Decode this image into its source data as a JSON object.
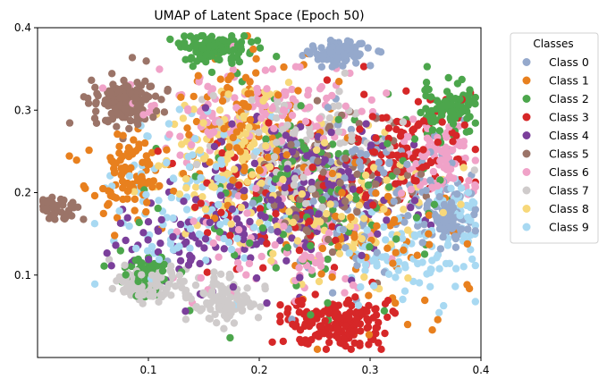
{
  "chart_data": {
    "type": "scatter",
    "title": "UMAP of Latent Space (Epoch 50)",
    "xlabel": "",
    "ylabel": "",
    "xlim": [
      0.0,
      0.4
    ],
    "ylim": [
      0.0,
      0.4
    ],
    "x_ticks": [
      0.1,
      0.2,
      0.3,
      0.4
    ],
    "y_ticks": [
      0.1,
      0.2,
      0.3,
      0.4
    ],
    "x_tick_labels": [
      "0.1",
      "0.2",
      "0.3",
      "0.4"
    ],
    "y_tick_labels": [
      "0.1",
      "0.2",
      "0.3",
      "0.4"
    ],
    "grid": false,
    "legend": {
      "title": "Classes",
      "placement": "outside-right-top"
    },
    "series": [
      {
        "name": "Class 0",
        "color": "#95a9cc",
        "clusters": [
          [
            0.27,
            0.37,
            0.025,
            0.012,
            90
          ],
          [
            0.37,
            0.17,
            0.015,
            0.025,
            90
          ],
          [
            0.28,
            0.2,
            0.08,
            0.09,
            140
          ]
        ]
      },
      {
        "name": "Class 1",
        "color": "#e8801e",
        "clusters": [
          [
            0.08,
            0.22,
            0.03,
            0.04,
            90
          ],
          [
            0.18,
            0.28,
            0.06,
            0.08,
            130
          ],
          [
            0.3,
            0.15,
            0.07,
            0.07,
            80
          ]
        ]
      },
      {
        "name": "Class 2",
        "color": "#4ca64c",
        "clusters": [
          [
            0.16,
            0.375,
            0.03,
            0.015,
            110
          ],
          [
            0.37,
            0.3,
            0.02,
            0.025,
            100
          ],
          [
            0.1,
            0.1,
            0.02,
            0.02,
            60
          ],
          [
            0.25,
            0.2,
            0.1,
            0.1,
            140
          ]
        ]
      },
      {
        "name": "Class 3",
        "color": "#d62728",
        "clusters": [
          [
            0.27,
            0.04,
            0.04,
            0.025,
            170
          ],
          [
            0.33,
            0.25,
            0.04,
            0.06,
            120
          ],
          [
            0.22,
            0.2,
            0.07,
            0.08,
            90
          ]
        ]
      },
      {
        "name": "Class 4",
        "color": "#7b3f9b",
        "clusters": [
          [
            0.24,
            0.2,
            0.07,
            0.08,
            200
          ],
          [
            0.13,
            0.14,
            0.05,
            0.05,
            80
          ]
        ]
      },
      {
        "name": "Class 5",
        "color": "#9b7468",
        "clusters": [
          [
            0.08,
            0.31,
            0.025,
            0.025,
            160
          ],
          [
            0.02,
            0.18,
            0.015,
            0.01,
            40
          ],
          [
            0.26,
            0.22,
            0.07,
            0.07,
            110
          ]
        ]
      },
      {
        "name": "Class 6",
        "color": "#f0a2c8",
        "clusters": [
          [
            0.2,
            0.3,
            0.08,
            0.05,
            150
          ],
          [
            0.36,
            0.24,
            0.03,
            0.04,
            90
          ],
          [
            0.22,
            0.13,
            0.08,
            0.06,
            80
          ]
        ]
      },
      {
        "name": "Class 7",
        "color": "#cfcbcb",
        "clusters": [
          [
            0.1,
            0.09,
            0.025,
            0.015,
            130
          ],
          [
            0.17,
            0.07,
            0.025,
            0.02,
            110
          ],
          [
            0.24,
            0.26,
            0.06,
            0.06,
            110
          ]
        ]
      },
      {
        "name": "Class 8",
        "color": "#f7d87a",
        "clusters": [
          [
            0.17,
            0.24,
            0.05,
            0.07,
            150
          ],
          [
            0.28,
            0.18,
            0.08,
            0.07,
            110
          ]
        ]
      },
      {
        "name": "Class 9",
        "color": "#a8d9f2",
        "clusters": [
          [
            0.15,
            0.2,
            0.07,
            0.09,
            140
          ],
          [
            0.33,
            0.12,
            0.05,
            0.05,
            90
          ],
          [
            0.38,
            0.18,
            0.015,
            0.03,
            40
          ]
        ]
      }
    ],
    "cluster_format": [
      "center_x",
      "center_y",
      "spread_x",
      "spread_y",
      "point_count"
    ]
  }
}
